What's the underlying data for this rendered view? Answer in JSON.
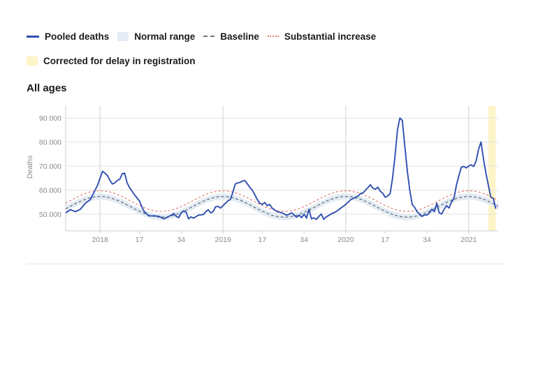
{
  "legend": {
    "pooled": "Pooled deaths",
    "normal": "Normal range",
    "baseline": "Baseline",
    "substantial": "Substantial increase",
    "corrected": "Corrected for delay in registration"
  },
  "colors": {
    "pooled": "#2f4fb0",
    "band": "#e3ebf3",
    "baseline": "#6b7280",
    "substantial": "#e2837a",
    "corrected": "#fdf4c8",
    "grid": "#e2e2e2"
  },
  "chart_data": {
    "type": "line",
    "title": "All ages",
    "xlabel": "",
    "ylabel": "Deaths",
    "ylim": [
      43000,
      95000
    ],
    "yticks": [
      50000,
      60000,
      70000,
      80000,
      90000
    ],
    "ytick_labels": [
      "50.000",
      "60.000",
      "70.000",
      "80.000",
      "90.000"
    ],
    "xlim": [
      -4,
      172
    ],
    "xticks": [
      10,
      26,
      43,
      60,
      76,
      93,
      110,
      126,
      143,
      160
    ],
    "xtick_labels": [
      "2018",
      "17",
      "34",
      "2019",
      "17",
      "34",
      "2020",
      "17",
      "34",
      "2021"
    ],
    "vlines": [
      10,
      60,
      110,
      160
    ],
    "corrected_range": [
      168,
      171
    ],
    "pooled": [
      [
        -4,
        50500
      ],
      [
        -2,
        51800
      ],
      [
        0,
        51000
      ],
      [
        2,
        52000
      ],
      [
        4,
        54500
      ],
      [
        6,
        56000
      ],
      [
        8,
        60000
      ],
      [
        9,
        62000
      ],
      [
        10,
        65000
      ],
      [
        11,
        67800
      ],
      [
        12,
        67000
      ],
      [
        13,
        66000
      ],
      [
        14,
        64000
      ],
      [
        15,
        62500
      ],
      [
        16,
        63000
      ],
      [
        17,
        64000
      ],
      [
        18,
        64500
      ],
      [
        19,
        66800
      ],
      [
        20,
        67000
      ],
      [
        21,
        63000
      ],
      [
        22,
        61000
      ],
      [
        23,
        59500
      ],
      [
        24,
        58000
      ],
      [
        26,
        55500
      ],
      [
        27,
        53000
      ],
      [
        28,
        51000
      ],
      [
        29,
        50000
      ],
      [
        30,
        49200
      ],
      [
        32,
        49300
      ],
      [
        34,
        49000
      ],
      [
        36,
        48000
      ],
      [
        38,
        49000
      ],
      [
        40,
        50200
      ],
      [
        41,
        49000
      ],
      [
        42,
        48500
      ],
      [
        43,
        50500
      ],
      [
        44,
        51300
      ],
      [
        45,
        50800
      ],
      [
        46,
        48000
      ],
      [
        47,
        48800
      ],
      [
        48,
        48300
      ],
      [
        50,
        49500
      ],
      [
        52,
        49800
      ],
      [
        53,
        51000
      ],
      [
        54,
        51800
      ],
      [
        55,
        50500
      ],
      [
        56,
        51000
      ],
      [
        57,
        53000
      ],
      [
        58,
        53200
      ],
      [
        59,
        52500
      ],
      [
        60,
        53500
      ],
      [
        61,
        54500
      ],
      [
        62,
        55500
      ],
      [
        63,
        56000
      ],
      [
        64,
        59000
      ],
      [
        65,
        62500
      ],
      [
        66,
        63000
      ],
      [
        67,
        63200
      ],
      [
        68,
        63800
      ],
      [
        69,
        63900
      ],
      [
        70,
        62500
      ],
      [
        71,
        61000
      ],
      [
        72,
        59800
      ],
      [
        73,
        58000
      ],
      [
        74,
        56000
      ],
      [
        75,
        54500
      ],
      [
        76,
        54000
      ],
      [
        77,
        54800
      ],
      [
        78,
        53500
      ],
      [
        79,
        54000
      ],
      [
        80,
        52500
      ],
      [
        82,
        51000
      ],
      [
        84,
        50500
      ],
      [
        86,
        49500
      ],
      [
        88,
        50500
      ],
      [
        89,
        49500
      ],
      [
        90,
        48700
      ],
      [
        91,
        49500
      ],
      [
        92,
        48500
      ],
      [
        93,
        50000
      ],
      [
        94,
        48300
      ],
      [
        95,
        52000
      ],
      [
        96,
        48000
      ],
      [
        97,
        48400
      ],
      [
        98,
        47800
      ],
      [
        99,
        49000
      ],
      [
        100,
        50000
      ],
      [
        101,
        47800
      ],
      [
        102,
        48800
      ],
      [
        104,
        50000
      ],
      [
        106,
        51000
      ],
      [
        108,
        52500
      ],
      [
        110,
        54000
      ],
      [
        112,
        56000
      ],
      [
        113,
        56500
      ],
      [
        114,
        57000
      ],
      [
        115,
        57500
      ],
      [
        116,
        58500
      ],
      [
        117,
        58800
      ],
      [
        118,
        60000
      ],
      [
        119,
        61000
      ],
      [
        120,
        62200
      ],
      [
        121,
        60800
      ],
      [
        122,
        60300
      ],
      [
        123,
        61200
      ],
      [
        124,
        59500
      ],
      [
        125,
        58700
      ],
      [
        126,
        57000
      ],
      [
        127,
        57500
      ],
      [
        128,
        58500
      ],
      [
        129,
        65000
      ],
      [
        130,
        74000
      ],
      [
        131,
        85000
      ],
      [
        132,
        90000
      ],
      [
        133,
        89000
      ],
      [
        134,
        78000
      ],
      [
        135,
        68000
      ],
      [
        136,
        60000
      ],
      [
        137,
        54000
      ],
      [
        138,
        52800
      ],
      [
        139,
        51000
      ],
      [
        140,
        50000
      ],
      [
        141,
        49000
      ],
      [
        142,
        49700
      ],
      [
        143,
        49500
      ],
      [
        144,
        50500
      ],
      [
        145,
        52000
      ],
      [
        146,
        51000
      ],
      [
        147,
        54500
      ],
      [
        148,
        50500
      ],
      [
        149,
        50000
      ],
      [
        150,
        52000
      ],
      [
        151,
        53500
      ],
      [
        152,
        52500
      ],
      [
        153,
        55000
      ],
      [
        154,
        56500
      ],
      [
        155,
        62000
      ],
      [
        156,
        66000
      ],
      [
        157,
        69500
      ],
      [
        158,
        69800
      ],
      [
        159,
        69200
      ],
      [
        160,
        70000
      ],
      [
        161,
        70500
      ],
      [
        162,
        69800
      ],
      [
        163,
        72000
      ],
      [
        164,
        77000
      ],
      [
        165,
        80000
      ],
      [
        166,
        73000
      ],
      [
        167,
        67000
      ],
      [
        168,
        62000
      ],
      [
        169,
        57000
      ],
      [
        170,
        56500
      ],
      [
        171,
        52200
      ]
    ],
    "baseline": {
      "mean": 53000,
      "amplitude": 4300,
      "period": 50,
      "peak_week": 10
    },
    "normal_range_halfwidth": 1300,
    "substantial_offset": 2400
  }
}
